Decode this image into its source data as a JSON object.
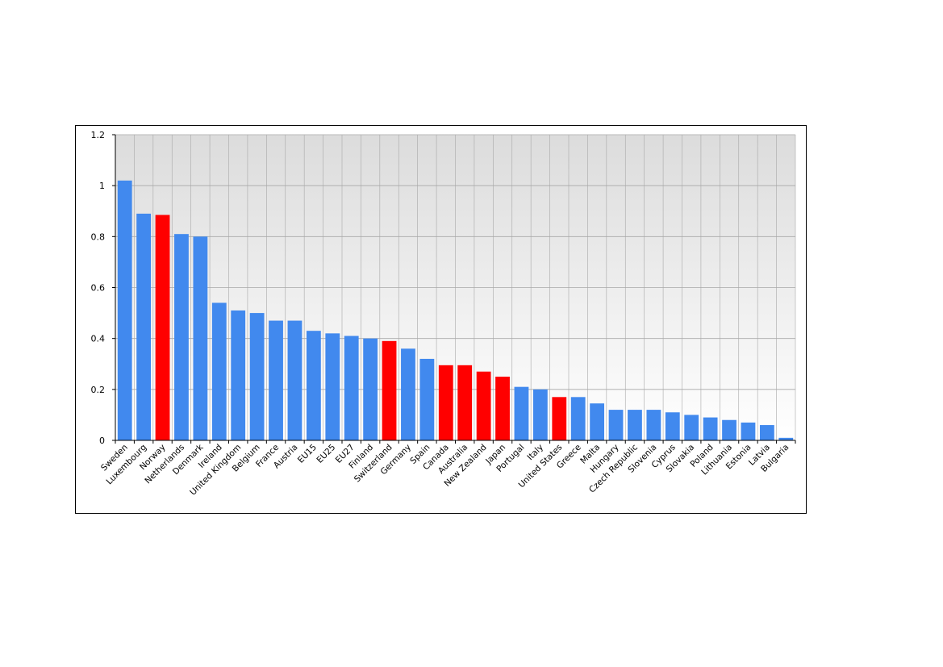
{
  "chart_data": {
    "type": "bar",
    "categories": [
      "Sweden",
      "Luxembourg",
      "Norway",
      "Netherlands",
      "Denmark",
      "Ireland",
      "United Kingdom",
      "Belgium",
      "France",
      "Austria",
      "EU15",
      "EU25",
      "EU27",
      "Finland",
      "Switzerland",
      "Germany",
      "Spain",
      "Canada",
      "Australia",
      "New Zealand",
      "Japan",
      "Portugal",
      "Italy",
      "United States",
      "Greece",
      "Malta",
      "Hungary",
      "Czech Republic",
      "Slovenia",
      "Cyprus",
      "Slovakia",
      "Poland",
      "Lithuania",
      "Estonia",
      "Latvia",
      "Bulgaria"
    ],
    "values": [
      1.02,
      0.89,
      0.885,
      0.81,
      0.8,
      0.54,
      0.51,
      0.5,
      0.47,
      0.47,
      0.43,
      0.42,
      0.41,
      0.4,
      0.39,
      0.36,
      0.32,
      0.295,
      0.295,
      0.27,
      0.25,
      0.21,
      0.2,
      0.17,
      0.17,
      0.145,
      0.12,
      0.12,
      0.12,
      0.11,
      0.1,
      0.09,
      0.08,
      0.07,
      0.06,
      0.01
    ],
    "highlighted": [
      "Norway",
      "Switzerland",
      "Canada",
      "Australia",
      "New Zealand",
      "Japan",
      "United States"
    ],
    "ylim": [
      0,
      1.2
    ],
    "yticks": [
      "0",
      "0.2",
      "0.4",
      "0.6",
      "0.8",
      "1",
      "1.2"
    ],
    "title": "",
    "xlabel": "",
    "ylabel": "",
    "grid": true,
    "colors": {
      "default_bar": "#4189EE",
      "highlight_bar": "#FF0000",
      "plot_bg_top": "#DCDCDC",
      "plot_bg_bottom": "#FFFFFF",
      "grid": "#A8A8A8"
    }
  }
}
